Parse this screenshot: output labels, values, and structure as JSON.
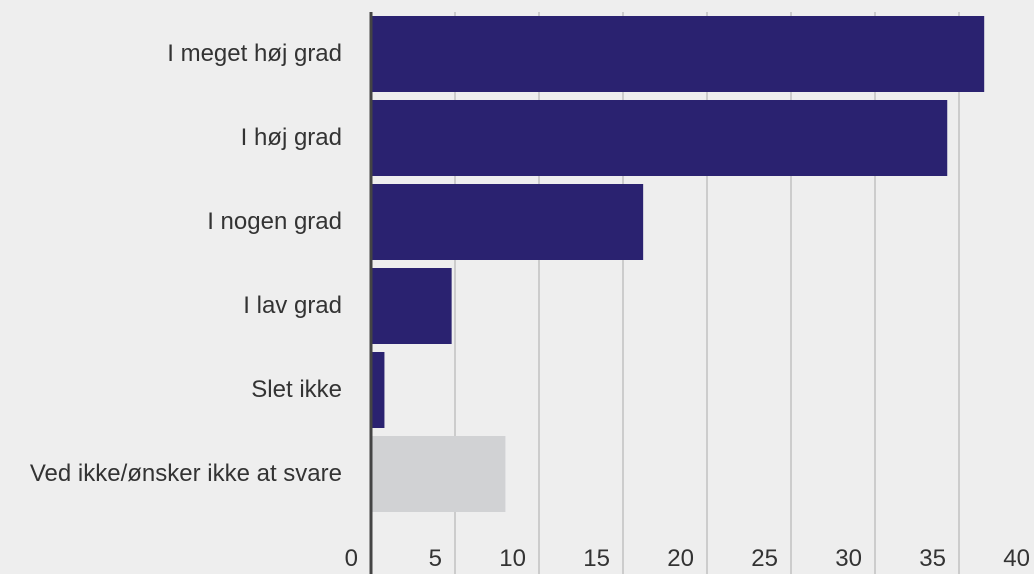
{
  "chart_data": {
    "type": "barh",
    "categories": [
      "I meget høj grad",
      "I høj grad",
      "I nogen grad",
      "I lav grad",
      "Slet ikke",
      "Ved ikke/ønsker ikke at svare"
    ],
    "values": [
      36.5,
      34.3,
      16.2,
      4.8,
      0.8,
      8.0
    ],
    "colors": [
      "#2a2270",
      "#2a2270",
      "#2a2270",
      "#2a2270",
      "#2a2270",
      "#d1d2d4"
    ],
    "xlim": [
      0,
      40
    ],
    "xticks": [
      0,
      5,
      10,
      15,
      20,
      25,
      30,
      35,
      40
    ],
    "grid": true
  }
}
